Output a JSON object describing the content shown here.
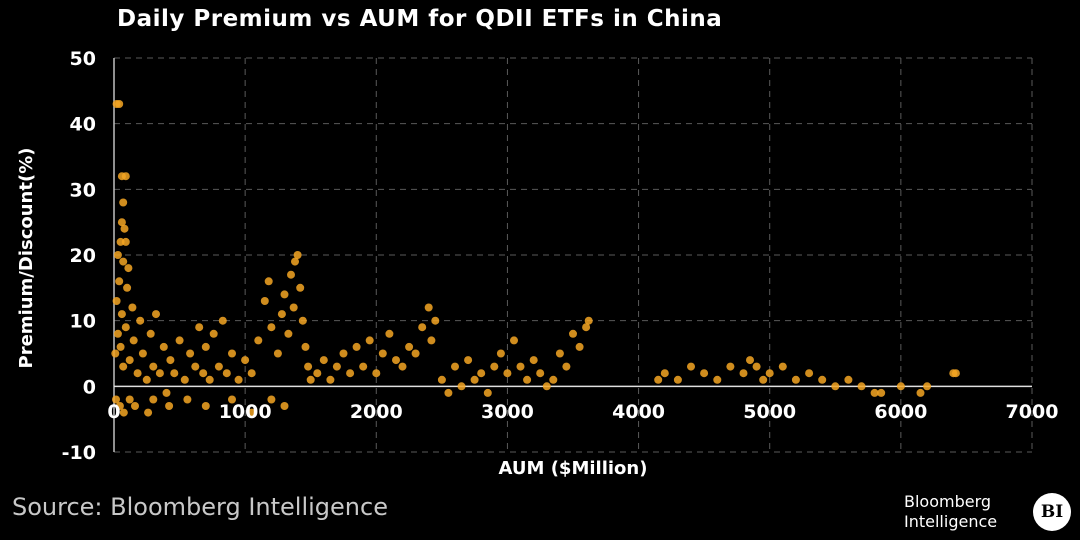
{
  "chart_data": {
    "type": "scatter",
    "title": "Daily Premium vs AUM for QDII ETFs in China",
    "xlabel": "AUM ($Million)",
    "ylabel": "Premium/Discount(%)",
    "xlim": [
      0,
      7000
    ],
    "ylim": [
      -10,
      50
    ],
    "xticks": [
      "0",
      "1000",
      "2000",
      "3000",
      "4000",
      "5000",
      "6000",
      "7000"
    ],
    "yticks": [
      "-10",
      "0",
      "10",
      "20",
      "30",
      "40",
      "50"
    ],
    "grid": true,
    "grid_style": "dashed",
    "marker_color": "#f5a623",
    "background_color": "#000000",
    "series": [
      {
        "points": [
          [
            20,
            43
          ],
          [
            40,
            43
          ],
          [
            60,
            32
          ],
          [
            90,
            32
          ],
          [
            70,
            28
          ],
          [
            60,
            25
          ],
          [
            80,
            24
          ],
          [
            50,
            22
          ],
          [
            90,
            22
          ],
          [
            30,
            20
          ],
          [
            70,
            19
          ],
          [
            110,
            18
          ],
          [
            40,
            16
          ],
          [
            100,
            15
          ],
          [
            140,
            12
          ],
          [
            20,
            13
          ],
          [
            60,
            11
          ],
          [
            10,
            5
          ],
          [
            30,
            8
          ],
          [
            50,
            6
          ],
          [
            70,
            3
          ],
          [
            90,
            9
          ],
          [
            120,
            4
          ],
          [
            150,
            7
          ],
          [
            180,
            2
          ],
          [
            200,
            10
          ],
          [
            220,
            5
          ],
          [
            250,
            1
          ],
          [
            280,
            8
          ],
          [
            300,
            3
          ],
          [
            320,
            11
          ],
          [
            350,
            2
          ],
          [
            380,
            6
          ],
          [
            400,
            -1
          ],
          [
            430,
            4
          ],
          [
            460,
            2
          ],
          [
            500,
            7
          ],
          [
            540,
            1
          ],
          [
            580,
            5
          ],
          [
            620,
            3
          ],
          [
            650,
            9
          ],
          [
            680,
            2
          ],
          [
            700,
            6
          ],
          [
            730,
            1
          ],
          [
            760,
            8
          ],
          [
            800,
            3
          ],
          [
            830,
            10
          ],
          [
            860,
            2
          ],
          [
            900,
            5
          ],
          [
            950,
            1
          ],
          [
            1000,
            4
          ],
          [
            1050,
            2
          ],
          [
            1100,
            7
          ],
          [
            1150,
            13
          ],
          [
            1180,
            16
          ],
          [
            1200,
            9
          ],
          [
            1250,
            5
          ],
          [
            1280,
            11
          ],
          [
            1300,
            14
          ],
          [
            1330,
            8
          ],
          [
            1350,
            17
          ],
          [
            1370,
            12
          ],
          [
            1380,
            19
          ],
          [
            1400,
            20
          ],
          [
            1420,
            15
          ],
          [
            1440,
            10
          ],
          [
            1460,
            6
          ],
          [
            1480,
            3
          ],
          [
            1500,
            1
          ],
          [
            1550,
            2
          ],
          [
            1600,
            4
          ],
          [
            1650,
            1
          ],
          [
            1700,
            3
          ],
          [
            1750,
            5
          ],
          [
            1800,
            2
          ],
          [
            1850,
            6
          ],
          [
            1900,
            3
          ],
          [
            1950,
            7
          ],
          [
            2000,
            2
          ],
          [
            2050,
            5
          ],
          [
            2100,
            8
          ],
          [
            2150,
            4
          ],
          [
            2200,
            3
          ],
          [
            2250,
            6
          ],
          [
            2300,
            5
          ],
          [
            2350,
            9
          ],
          [
            2400,
            12
          ],
          [
            2420,
            7
          ],
          [
            2450,
            10
          ],
          [
            2500,
            1
          ],
          [
            2550,
            -1
          ],
          [
            2600,
            3
          ],
          [
            2650,
            0
          ],
          [
            2700,
            4
          ],
          [
            2750,
            1
          ],
          [
            2800,
            2
          ],
          [
            2850,
            -1
          ],
          [
            2900,
            3
          ],
          [
            2950,
            5
          ],
          [
            3000,
            2
          ],
          [
            3050,
            7
          ],
          [
            3100,
            3
          ],
          [
            3150,
            1
          ],
          [
            3200,
            4
          ],
          [
            3250,
            2
          ],
          [
            3300,
            0
          ],
          [
            3350,
            1
          ],
          [
            3400,
            5
          ],
          [
            3450,
            3
          ],
          [
            3500,
            8
          ],
          [
            3550,
            6
          ],
          [
            3600,
            9
          ],
          [
            3620,
            10
          ],
          [
            4150,
            1
          ],
          [
            4200,
            2
          ],
          [
            4300,
            1
          ],
          [
            4400,
            3
          ],
          [
            4500,
            2
          ],
          [
            4600,
            1
          ],
          [
            4700,
            3
          ],
          [
            4800,
            2
          ],
          [
            4850,
            4
          ],
          [
            4900,
            3
          ],
          [
            4950,
            1
          ],
          [
            5000,
            2
          ],
          [
            5100,
            3
          ],
          [
            5200,
            1
          ],
          [
            5300,
            2
          ],
          [
            5400,
            1
          ],
          [
            5500,
            0
          ],
          [
            5600,
            1
          ],
          [
            5700,
            0
          ],
          [
            5800,
            -1
          ],
          [
            5850,
            -1
          ],
          [
            6000,
            0
          ],
          [
            6150,
            -1
          ],
          [
            6200,
            0
          ],
          [
            6400,
            2
          ],
          [
            6420,
            2
          ],
          [
            15,
            -2
          ],
          [
            45,
            -3
          ],
          [
            75,
            -4
          ],
          [
            120,
            -2
          ],
          [
            160,
            -3
          ],
          [
            260,
            -4
          ],
          [
            300,
            -2
          ],
          [
            420,
            -3
          ],
          [
            560,
            -2
          ],
          [
            700,
            -3
          ],
          [
            900,
            -2
          ],
          [
            1050,
            -4
          ],
          [
            1200,
            -2
          ],
          [
            1300,
            -3
          ]
        ]
      }
    ]
  },
  "source": "Source: Bloomberg Intelligence",
  "brand": {
    "line1": "Bloomberg",
    "line2": "Intelligence",
    "badge": "BI"
  }
}
